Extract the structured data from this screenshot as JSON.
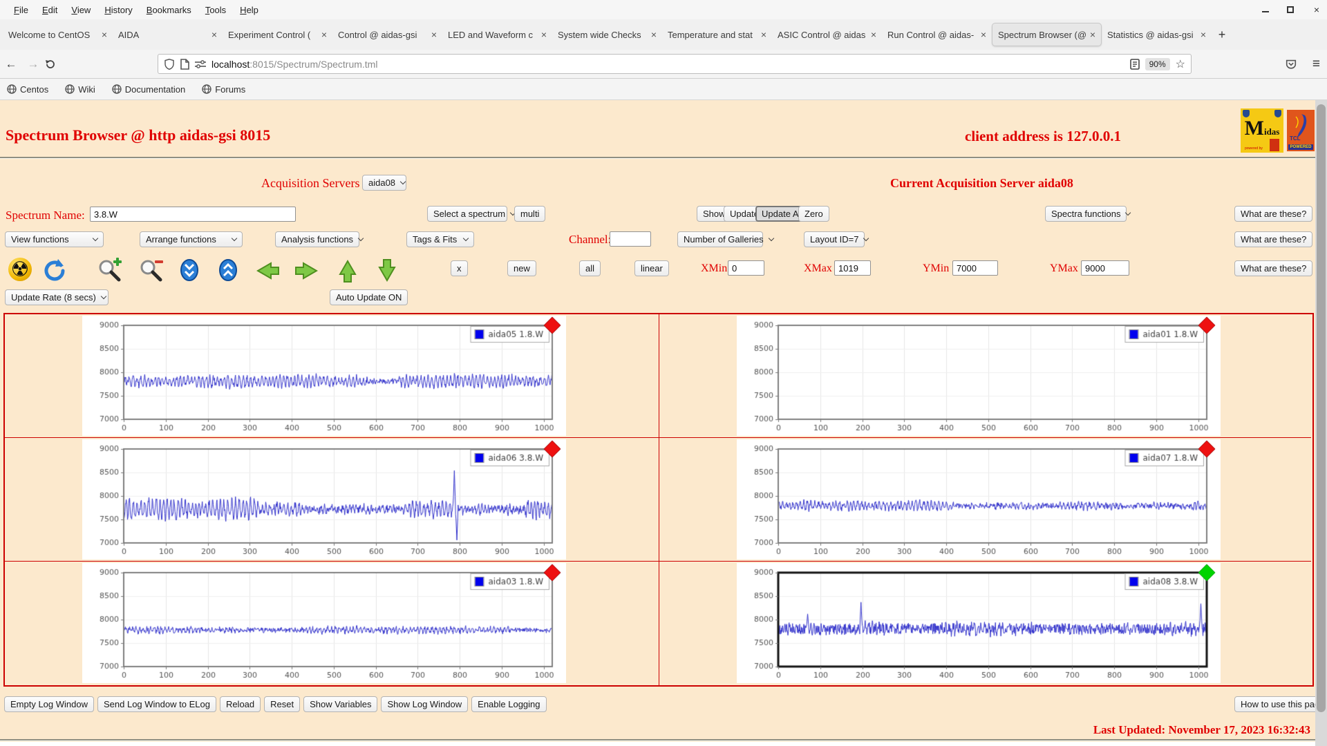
{
  "browser": {
    "menu": [
      "File",
      "Edit",
      "View",
      "History",
      "Bookmarks",
      "Tools",
      "Help"
    ],
    "tabs": [
      {
        "label": "Welcome to CentOS",
        "active": false
      },
      {
        "label": "AIDA",
        "active": false
      },
      {
        "label": "Experiment Control (",
        "active": false
      },
      {
        "label": "Control @ aidas-gsi",
        "active": false
      },
      {
        "label": "LED and Waveform c",
        "active": false
      },
      {
        "label": "System wide Checks",
        "active": false
      },
      {
        "label": "Temperature and stat",
        "active": false
      },
      {
        "label": "ASIC Control @ aidas",
        "active": false
      },
      {
        "label": "Run Control @ aidas-",
        "active": false
      },
      {
        "label": "Spectrum Browser (@",
        "active": true
      },
      {
        "label": "Statistics @ aidas-gsi",
        "active": false
      }
    ],
    "glyphs": {
      "close": "×",
      "new_tab": "+",
      "back": "←",
      "forward": "→",
      "star": "☆",
      "hamburger": "≡",
      "radiation": "☢"
    },
    "nav": {
      "url_host": "localhost",
      "url_rest": ":8015/Spectrum/Spectrum.tml",
      "zoom_badge": "90%"
    },
    "bookmarks": [
      "Centos",
      "Wiki",
      "Documentation",
      "Forums"
    ]
  },
  "page": {
    "title": "Spectrum Browser @ http aidas-gsi 8015",
    "client_address": "client address is 127.0.0.1",
    "logos": {
      "midas_m": "M",
      "midas_rest": "idas",
      "tcl": "TCL",
      "powered": "POWERED"
    },
    "acquisition": {
      "label": "Acquisition Servers",
      "selected": "aida08",
      "current": "Current Acquisition Server aida08"
    },
    "spectrum_row": {
      "name_label": "Spectrum Name:",
      "name_value": "3.8.W",
      "select_spectrum": "Select a spectrum",
      "multi": "multi",
      "show": "Show",
      "update": "Update",
      "update_all": "Update All",
      "zero": "Zero",
      "spectra_functions": "Spectra functions",
      "what": "What are these?"
    },
    "functions_row": {
      "view": "View functions",
      "arrange": "Arrange functions",
      "analysis": "Analysis functions",
      "tags": "Tags & Fits",
      "channel_label": "Channel:",
      "channel_value": "",
      "galleries": "Number of Galleries",
      "layout": "Layout ID=7",
      "what": "What are these?"
    },
    "axis_row": {
      "x_btn": "x",
      "new_btn": "new",
      "all_btn": "all",
      "linear_btn": "linear",
      "xmin_label": "XMin",
      "xmin": "0",
      "xmax_label": "XMax",
      "xmax": "1019",
      "ymin_label": "YMin",
      "ymin": "7000",
      "ymax_label": "YMax",
      "ymax": "9000",
      "what": "What are these?"
    },
    "update_row": {
      "rate": "Update Rate (8 secs)",
      "auto": "Auto Update ON"
    },
    "log_buttons": [
      "Empty Log Window",
      "Send Log Window to ELog",
      "Reload",
      "Reset",
      "Show Variables",
      "Show Log Window",
      "Enable Logging"
    ],
    "help_button": "How to use this page",
    "last_updated": "Last Updated: November 17, 2023 16:32:43",
    "colors": {
      "page_bg": "#fce9cd",
      "accent_red": "#e00000",
      "grid_red": "#cc0000",
      "trace_blue": "#3232cc",
      "marker_red": "#ee1111",
      "marker_green": "#00d400",
      "plot_border": "#7f7f7f",
      "selected_border": "#111111"
    }
  },
  "chart_data": [
    {
      "type": "line",
      "legend": "aida05 1.8.W",
      "marker": "red",
      "selected": false,
      "xlim": [
        0,
        1019
      ],
      "ylim": [
        7000,
        9000
      ],
      "xticks": [
        0,
        100,
        200,
        300,
        400,
        500,
        600,
        700,
        800,
        900,
        1000
      ],
      "yticks": [
        7000,
        7500,
        8000,
        8500,
        9000
      ],
      "grid": true,
      "legend_position": "top-right",
      "series": {
        "present": true,
        "points": 1020,
        "baseline": 7810,
        "wave_amplitude": 150,
        "noise_amplitude": 55,
        "seed": 5,
        "spikes": []
      }
    },
    {
      "type": "line",
      "legend": "aida01 1.8.W",
      "marker": "red",
      "selected": false,
      "xlim": [
        0,
        1019
      ],
      "ylim": [
        7000,
        9000
      ],
      "xticks": [
        0,
        100,
        200,
        300,
        400,
        500,
        600,
        700,
        800,
        900,
        1000
      ],
      "yticks": [
        7000,
        7500,
        8000,
        8500,
        9000
      ],
      "grid": true,
      "legend_position": "top-right",
      "series": {
        "present": false,
        "points": 0,
        "baseline": 0,
        "wave_amplitude": 0,
        "noise_amplitude": 0,
        "seed": 1,
        "spikes": []
      }
    },
    {
      "type": "line",
      "legend": "aida06 3.8.W",
      "marker": "red",
      "selected": false,
      "xlim": [
        0,
        1019
      ],
      "ylim": [
        7000,
        9000
      ],
      "xticks": [
        0,
        100,
        200,
        300,
        400,
        500,
        600,
        700,
        800,
        900,
        1000
      ],
      "yticks": [
        7000,
        7500,
        8000,
        8500,
        9000
      ],
      "grid": true,
      "legend_position": "top-right",
      "series": {
        "present": true,
        "points": 1020,
        "baseline": 7720,
        "wave_amplitude": 260,
        "noise_amplitude": 75,
        "seed": 6,
        "spikes": [
          {
            "x": 787,
            "y": 8540
          },
          {
            "x": 793,
            "y": 7060
          }
        ]
      }
    },
    {
      "type": "line",
      "legend": "aida07 1.8.W",
      "marker": "red",
      "selected": false,
      "xlim": [
        0,
        1019
      ],
      "ylim": [
        7000,
        9000
      ],
      "xticks": [
        0,
        100,
        200,
        300,
        400,
        500,
        600,
        700,
        800,
        900,
        1000
      ],
      "yticks": [
        7000,
        7500,
        8000,
        8500,
        9000
      ],
      "grid": true,
      "legend_position": "top-right",
      "series": {
        "present": true,
        "points": 1020,
        "baseline": 7790,
        "wave_amplitude": 110,
        "noise_amplitude": 55,
        "seed": 7,
        "spikes": []
      }
    },
    {
      "type": "line",
      "legend": "aida03 1.8.W",
      "marker": "red",
      "selected": false,
      "xlim": [
        0,
        1019
      ],
      "ylim": [
        7000,
        9000
      ],
      "xticks": [
        0,
        100,
        200,
        300,
        400,
        500,
        600,
        700,
        800,
        900,
        1000
      ],
      "yticks": [
        7000,
        7500,
        8000,
        8500,
        9000
      ],
      "grid": true,
      "legend_position": "top-right",
      "series": {
        "present": true,
        "points": 1020,
        "baseline": 7780,
        "wave_amplitude": 70,
        "noise_amplitude": 45,
        "seed": 3,
        "spikes": []
      }
    },
    {
      "type": "line",
      "legend": "aida08 3.8.W",
      "marker": "green",
      "selected": true,
      "xlim": [
        0,
        1019
      ],
      "ylim": [
        7000,
        9000
      ],
      "xticks": [
        0,
        100,
        200,
        300,
        400,
        500,
        600,
        700,
        800,
        900,
        1000
      ],
      "yticks": [
        7000,
        7500,
        8000,
        8500,
        9000
      ],
      "grid": true,
      "legend_position": "top-right",
      "series": {
        "present": true,
        "points": 1020,
        "baseline": 7800,
        "wave_amplitude": 90,
        "noise_amplitude": 115,
        "seed": 8,
        "spikes": [
          {
            "x": 197,
            "y": 8370
          },
          {
            "x": 1006,
            "y": 8340
          },
          {
            "x": 70,
            "y": 8120
          }
        ]
      }
    }
  ]
}
